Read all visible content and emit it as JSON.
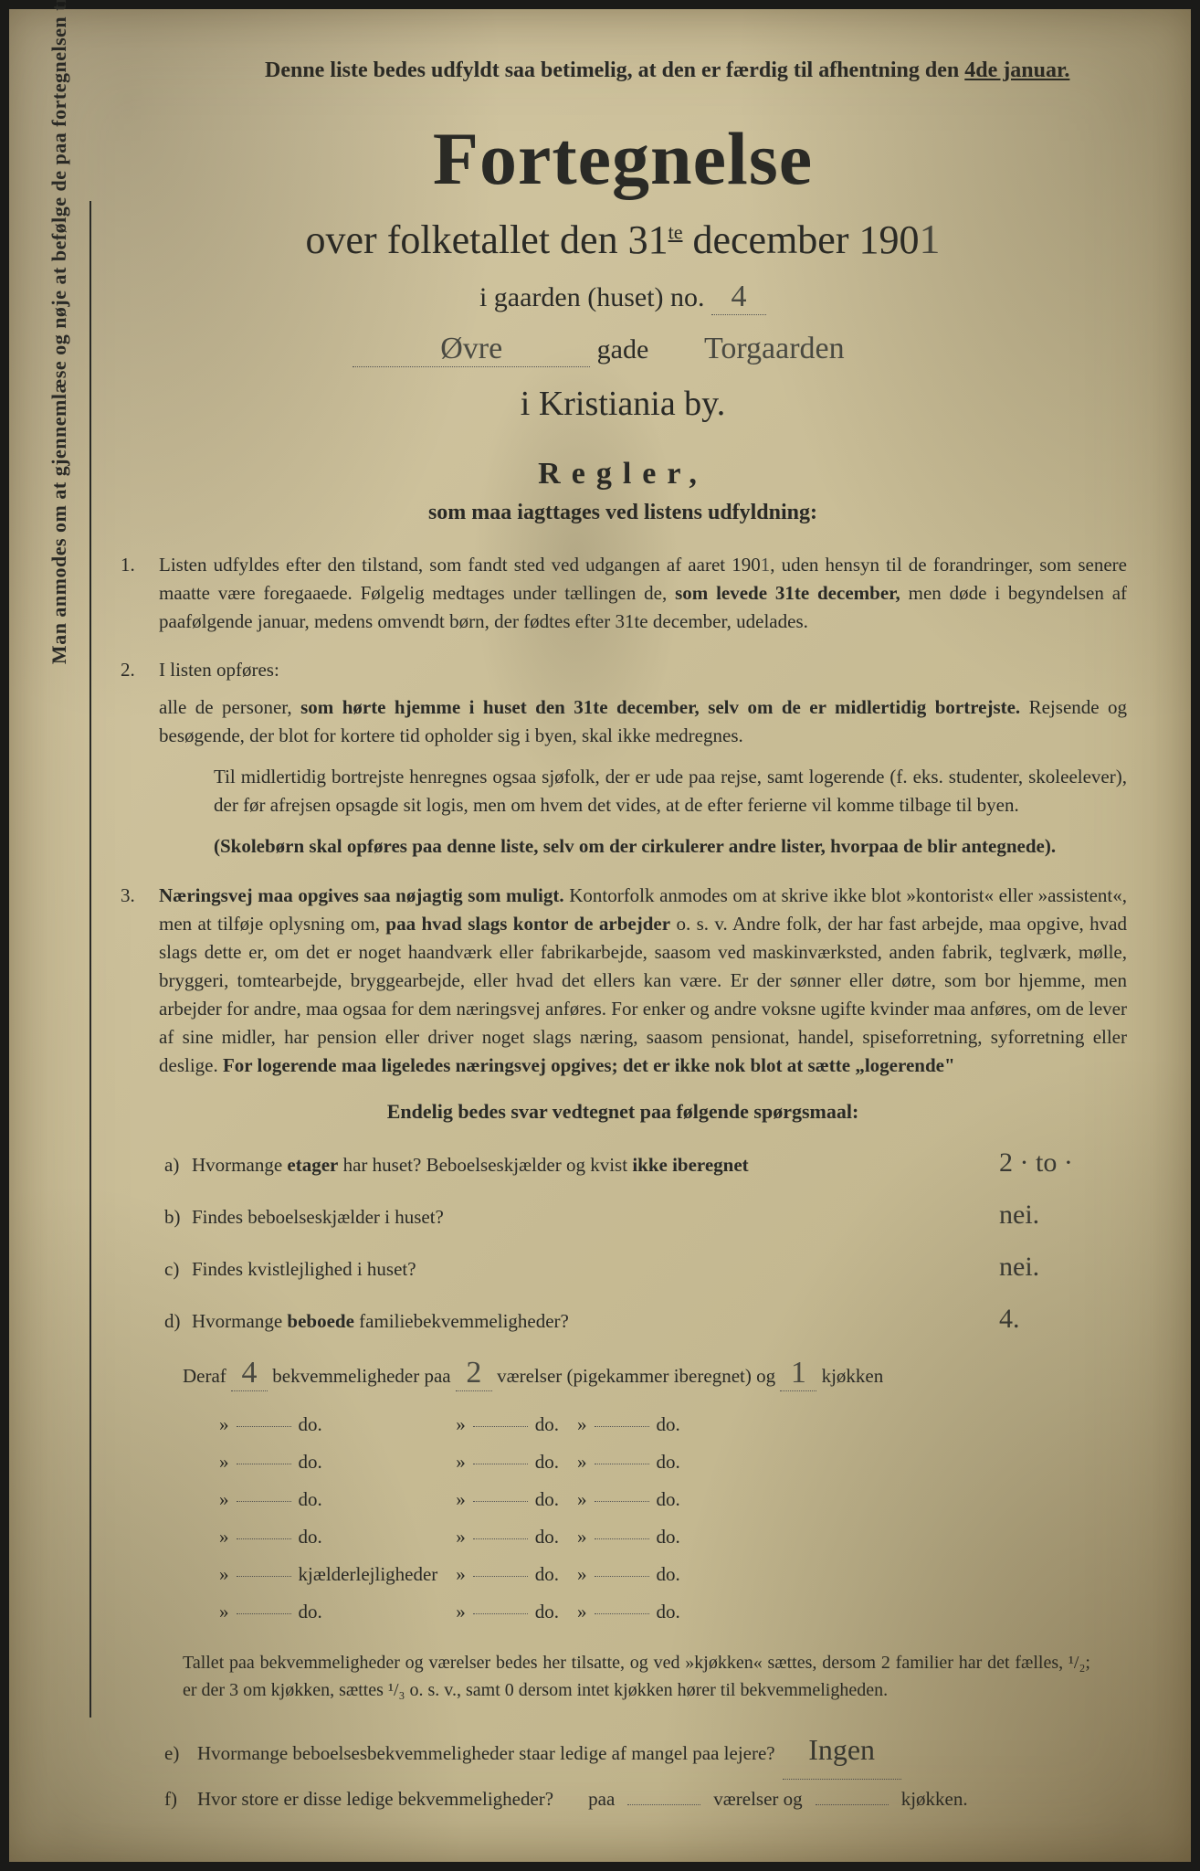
{
  "colors": {
    "paper_bg_start": "#d4c9a8",
    "paper_bg_end": "#baa97f",
    "ink": "#2a2a26",
    "handwriting": "#3a3a34",
    "backdrop": "#1a1a18"
  },
  "top_note": {
    "line": "Denne liste bedes udfyldt saa betimelig, at den er færdig til afhentning den ",
    "deadline": "4de januar."
  },
  "title": "Fortegnelse",
  "subtitle_prefix": "over folketallet den 31",
  "subtitle_sup": "te",
  "subtitle_month": " december 190",
  "year_digit": "1",
  "gaard_label": "i gaarden (huset) no.",
  "gaard_no": "4",
  "street_left": "Øvre",
  "gade_label": "gade",
  "street_right": "Torgaarden",
  "city": "i Kristiania by.",
  "regler_h": "Regler,",
  "regler_sub": "som maa iagttages ved listens udfyldning:",
  "vertical_note": "Man anmodes om at gjennemlæse og nøje at befølge de paa fortegnelsen trykte overskrifter og anvisninger.",
  "rules": {
    "r1": {
      "num": "1.",
      "text_a": "Listen udfyldes efter den tilstand, som fandt sted ved udgangen af aaret 190",
      "year": "1",
      "text_b": ", uden hensyn til de forandringer, som senere maatte være foregaaede. Følgelig medtages under tællingen de, ",
      "bold": "som levede 31te december,",
      "text_c": " men døde i begyndelsen af paafølgende januar, medens omvendt børn, der fødtes efter 31te december, udelades."
    },
    "r2": {
      "num": "2.",
      "text_a": "I listen opføres:",
      "para_b1": "alle de personer, ",
      "para_b_bold": "som hørte hjemme i huset den 31te december, selv om de er midlertidig bortrejste.",
      "para_b2": " Rejsende og besøgende, der blot for kortere tid opholder sig i byen, skal ikke medregnes.",
      "para_c": "Til midlertidig bortrejste henregnes ogsaa sjøfolk, der er ude paa rejse, samt logerende (f. eks. studenter, skoleelever), der før afrejsen opsagde sit logis, men om hvem det vides, at de efter ferierne vil komme tilbage til byen.",
      "para_d_bold": "(Skolebørn skal opføres paa denne liste, selv om der cirkulerer andre lister, hvorpaa de blir antegnede)."
    },
    "r3": {
      "num": "3.",
      "bold_a": "Næringsvej maa opgives saa nøjagtig som muligt.",
      "text_a": " Kontorfolk anmodes om at skrive ikke blot »kontorist« eller »assistent«, men at tilføje oplysning om, ",
      "bold_b": "paa hvad slags kontor de arbejder",
      "text_b": " o. s. v. Andre folk, der har fast arbejde, maa opgive, hvad slags dette er, om det er noget haandværk eller fabrikarbejde, saasom ved maskinværksted, anden fabrik, teglværk, mølle, bryggeri, tomtearbejde, bryggearbejde, eller hvad det ellers kan være. Er der sønner eller døtre, som bor hjemme, men arbejder for andre, maa ogsaa for dem næringsvej anføres. For enker og andre voksne ugifte kvinder maa anføres, om de lever af sine midler, har pension eller driver noget slags næring, saasom pensionat, handel, spiseforretning, syforretning eller deslige. ",
      "bold_c": "For logerende maa ligeledes næringsvej opgives; det er ikke nok blot at sætte „logerende\""
    }
  },
  "final_heading": "Endelig bedes svar vedtegnet paa følgende spørgsmaal:",
  "qa": {
    "a": {
      "lbl": "a)",
      "q_pre": "Hvormange ",
      "q_bold": "etager",
      "q_post": " har huset?  Beboelseskjælder og kvist ",
      "q_bold2": "ikke iberegnet",
      "ans": "2 · to ·"
    },
    "b": {
      "lbl": "b)",
      "q": "Findes beboelseskjælder i huset?",
      "ans": "nei."
    },
    "c": {
      "lbl": "c)",
      "q": "Findes kvistlejlighed i huset?",
      "ans": "nei."
    },
    "d": {
      "lbl": "d)",
      "q_pre": "Hvormange ",
      "q_bold": "beboede",
      "q_post": " familiebekvemmeligheder?",
      "ans": "4."
    }
  },
  "deraf": {
    "prefix": "Deraf",
    "v1": "4",
    "mid1": "bekvemmeligheder paa",
    "v2": "2",
    "mid2": "værelser (pigekammer iberegnet) og",
    "v3": "1",
    "tail": "kjøkken"
  },
  "dos_table": {
    "rows": [
      {
        "c1": "do.",
        "c2": "do.",
        "c3": "do."
      },
      {
        "c1": "do.",
        "c2": "do.",
        "c3": "do."
      },
      {
        "c1": "do.",
        "c2": "do.",
        "c3": "do."
      },
      {
        "c1": "do.",
        "c2": "do.",
        "c3": "do."
      },
      {
        "c1": "kjælderlejligheder",
        "c2": "do.",
        "c3": "do."
      },
      {
        "c1": "do.",
        "c2": "do.",
        "c3": "do."
      }
    ]
  },
  "footnote": "Tallet paa bekvemmeligheder og værelser bedes her tilsatte, og ved »kjøkken« sættes, dersom 2 familier har det fælles, ¹/₂; er der 3 om kjøkken, sættes ¹/₃ o. s. v., samt 0 dersom intet kjøkken hører til bekvemmeligheden.",
  "qa2": {
    "e": {
      "lbl": "e)",
      "q": "Hvormange beboelsesbekvemmeligheder staar ledige af mangel paa lejere?",
      "ans": "Ingen"
    },
    "f": {
      "lbl": "f)",
      "q": "Hvor store er disse ledige bekvemmeligheder?",
      "mid1": "paa",
      "mid2": "værelser og",
      "mid3": "kjøkken."
    }
  }
}
